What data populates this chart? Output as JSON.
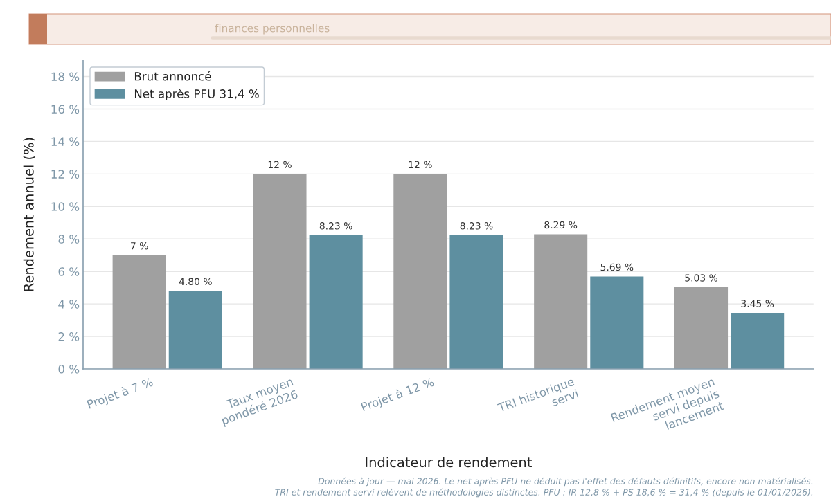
{
  "chart_data": {
    "type": "bar",
    "subtitle": "finances personnelles",
    "xlabel": "Indicateur de rendement",
    "ylabel": "Rendement annuel (%)",
    "categories": [
      "Projet à 7 %",
      "Taux moyen\npondéré 2026",
      "Projet à 12 %",
      "TRI historique\nservi",
      "Rendement moyen\nservi depuis\nlancement"
    ],
    "series": [
      {
        "name": "Brut annoncé",
        "color": "#a0a0a0",
        "values": [
          7,
          12,
          12,
          8.29,
          5.03
        ],
        "value_labels": [
          "7 %",
          "12 %",
          "12 %",
          "8.29 %",
          "5.03 %"
        ]
      },
      {
        "name": "Net après PFU 31,4 %",
        "color": "#5e8fa0",
        "values": [
          4.8,
          8.23,
          8.23,
          5.69,
          3.45
        ],
        "value_labels": [
          "4.80 %",
          "8.23 %",
          "8.23 %",
          "5.69 %",
          "3.45 %"
        ]
      }
    ],
    "ylim": [
      0,
      19
    ],
    "yticks": [
      {
        "value": 0,
        "label": "0 %"
      },
      {
        "value": 2,
        "label": "2 %"
      },
      {
        "value": 4,
        "label": "4 %"
      },
      {
        "value": 6,
        "label": "6 %"
      },
      {
        "value": 8,
        "label": "8 %"
      },
      {
        "value": 10,
        "label": "10 %"
      },
      {
        "value": 12,
        "label": "12 %"
      },
      {
        "value": 14,
        "label": "14 %"
      },
      {
        "value": 16,
        "label": "16 %"
      },
      {
        "value": 18,
        "label": "18 %"
      }
    ],
    "grid": "y",
    "legend": "top left",
    "annotations": [
      "Données à jour — mai 2026. Le net après PFU ne déduit pas l'effet des défauts définitifs, encore non matérialisés.",
      "TRI et rendement servi relèvent de méthodologies distinctes. PFU : IR 12,8 % + PS 18,6 % = 31,4 % (depuis le 01/01/2026)."
    ]
  }
}
